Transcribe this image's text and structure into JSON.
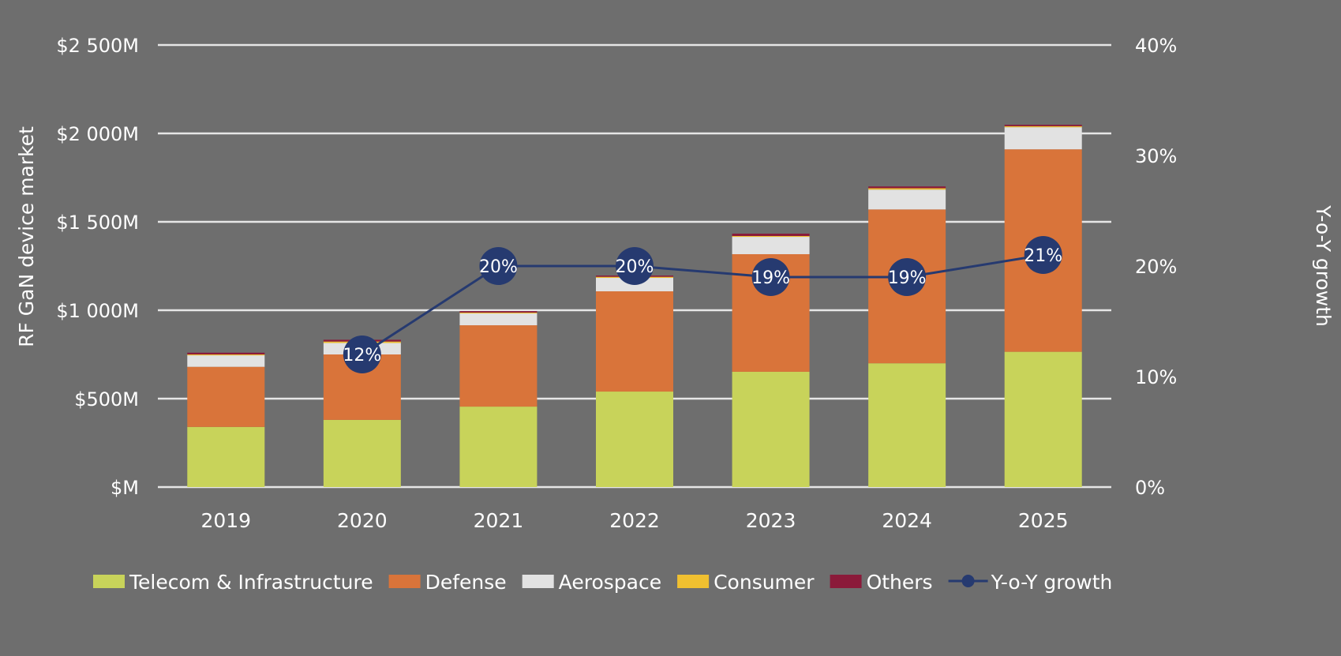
{
  "chart_data": {
    "type": "bar",
    "stacked": true,
    "categories": [
      "2019",
      "2020",
      "2021",
      "2022",
      "2023",
      "2024",
      "2025"
    ],
    "ylabel": "RF GaN device market",
    "y2label": "Y-o-Y growth",
    "ylim": [
      0,
      2500
    ],
    "y2lim": [
      0,
      40
    ],
    "yticks": [
      "$M",
      "$500M",
      "$1 000M",
      "$1 500M",
      "$2 000M",
      "$2 500M"
    ],
    "y2ticks": [
      "0%",
      "10%",
      "20%",
      "30%",
      "40%"
    ],
    "grid": true,
    "legend_position": "bottom",
    "series": [
      {
        "name": "Telecom & Infrastructure",
        "color": "#c8d35a",
        "values": [
          340,
          380,
          455,
          540,
          652,
          700,
          765
        ]
      },
      {
        "name": "Defense",
        "color": "#d9743a",
        "values": [
          340,
          370,
          460,
          567,
          665,
          870,
          1145
        ]
      },
      {
        "name": "Aerospace",
        "color": "#e2e2e2",
        "values": [
          65,
          65,
          67,
          76,
          98,
          112,
          125
        ]
      },
      {
        "name": "Consumer",
        "color": "#f0c030",
        "values": [
          5,
          8,
          5,
          6,
          5,
          8,
          6
        ]
      },
      {
        "name": "Others",
        "color": "#8b1a3a",
        "values": [
          10,
          10,
          8,
          7,
          13,
          10,
          8
        ]
      }
    ],
    "line": {
      "name": "Y-o-Y growth",
      "color": "#263a70",
      "axis": "right",
      "categories": [
        "2020",
        "2021",
        "2022",
        "2023",
        "2024",
        "2025"
      ],
      "values": [
        12,
        20,
        20,
        19,
        19,
        21
      ],
      "labels": [
        "12%",
        "20%",
        "20%",
        "19%",
        "19%",
        "21%"
      ]
    }
  }
}
